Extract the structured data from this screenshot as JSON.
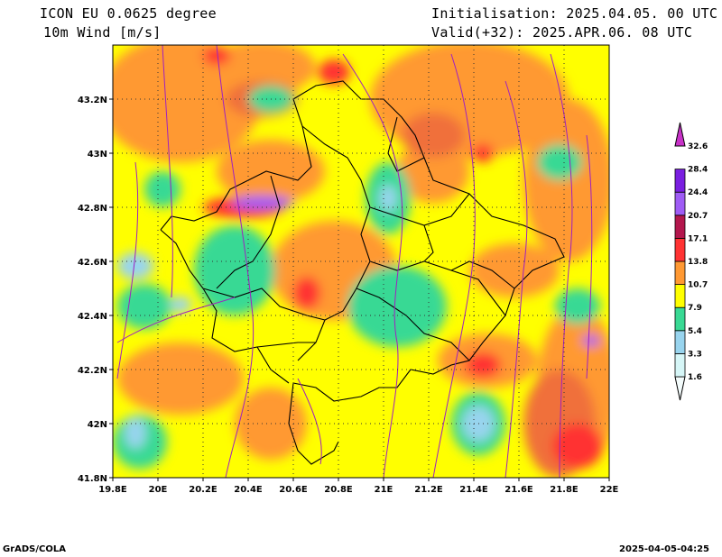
{
  "header": {
    "model": "ICON EU 0.0625 degree",
    "variable": "10m Wind [m/s]",
    "initialisation": "Initialisation: 2025.04.05. 00 UTC",
    "valid": "Valid(+32): 2025.APR.06. 08 UTC"
  },
  "map": {
    "x_axis_labels": [
      "19.8E",
      "20E",
      "20.2E",
      "20.4E",
      "20.6E",
      "20.8E",
      "21E",
      "21.2E",
      "21.4E",
      "21.6E",
      "21.8E",
      "22E"
    ],
    "y_axis_labels": [
      "43.2N",
      "43N",
      "42.8N",
      "42.6N",
      "42.4N",
      "42.2N",
      "42N",
      "41.8N"
    ],
    "lon_range": [
      19.8,
      22.0
    ],
    "lat_range": [
      41.8,
      43.4
    ]
  },
  "colorbar": {
    "levels": [
      "1.6",
      "3.3",
      "5.4",
      "7.9",
      "10.7",
      "13.8",
      "17.1",
      "20.7",
      "24.4",
      "28.4",
      "32.6"
    ],
    "colors": [
      "#d6f6f7",
      "#98d4ee",
      "#39d994",
      "#ffff00",
      "#ff9933",
      "#ff3333",
      "#b3174d",
      "#9f5cf5",
      "#7a1fe0",
      "#c832c8"
    ]
  },
  "footer": {
    "left": "GrADS/COLA",
    "right": "2025-04-05-04:25"
  }
}
